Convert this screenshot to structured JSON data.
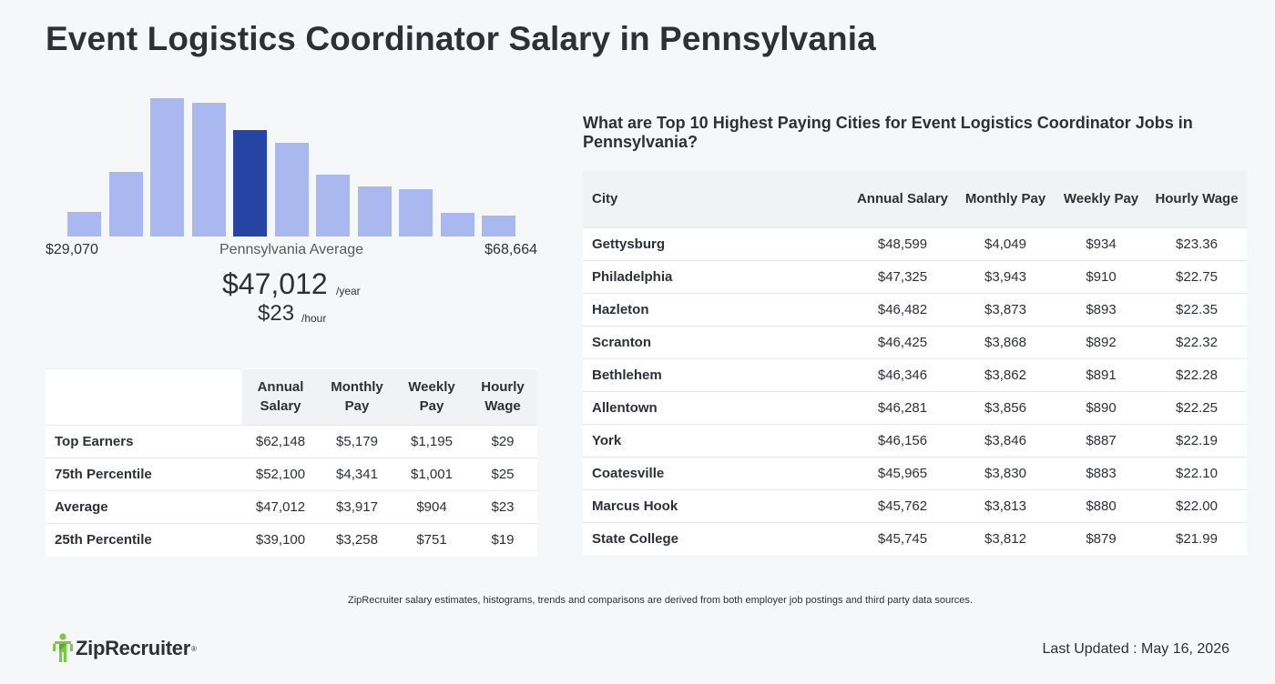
{
  "title": "Event Logistics Coordinator Salary in Pennsylvania",
  "histogram": {
    "bars": [
      0.18,
      0.47,
      1.0,
      0.97,
      0.77,
      0.68,
      0.45,
      0.36,
      0.34,
      0.17,
      0.15
    ],
    "highlight_index": 4,
    "bar_color": "#aab8f0",
    "highlight_color": "#2645a3",
    "range_min": "$29,070",
    "range_max": "$68,664",
    "average_label": "Pennsylvania Average",
    "average_annual": "$47,012",
    "annual_unit": "/year",
    "average_hourly": "$23",
    "hourly_unit": "/hour"
  },
  "percentile_table": {
    "headers": [
      "Annual Salary",
      "Monthly Pay",
      "Weekly Pay",
      "Hourly Wage"
    ],
    "rows": [
      {
        "label": "Top Earners",
        "annual": "$62,148",
        "monthly": "$5,179",
        "weekly": "$1,195",
        "hourly": "$29"
      },
      {
        "label": "75th Percentile",
        "annual": "$52,100",
        "monthly": "$4,341",
        "weekly": "$1,001",
        "hourly": "$25"
      },
      {
        "label": "Average",
        "annual": "$47,012",
        "monthly": "$3,917",
        "weekly": "$904",
        "hourly": "$23"
      },
      {
        "label": "25th Percentile",
        "annual": "$39,100",
        "monthly": "$3,258",
        "weekly": "$751",
        "hourly": "$19"
      }
    ]
  },
  "cities": {
    "heading": "What are Top 10 Highest Paying Cities for Event Logistics Coordinator Jobs in Pennsylvania?",
    "headers": [
      "City",
      "Annual Salary",
      "Monthly Pay",
      "Weekly Pay",
      "Hourly Wage"
    ],
    "rows": [
      {
        "city": "Gettysburg",
        "annual": "$48,599",
        "monthly": "$4,049",
        "weekly": "$934",
        "hourly": "$23.36"
      },
      {
        "city": "Philadelphia",
        "annual": "$47,325",
        "monthly": "$3,943",
        "weekly": "$910",
        "hourly": "$22.75"
      },
      {
        "city": "Hazleton",
        "annual": "$46,482",
        "monthly": "$3,873",
        "weekly": "$893",
        "hourly": "$22.35"
      },
      {
        "city": "Scranton",
        "annual": "$46,425",
        "monthly": "$3,868",
        "weekly": "$892",
        "hourly": "$22.32"
      },
      {
        "city": "Bethlehem",
        "annual": "$46,346",
        "monthly": "$3,862",
        "weekly": "$891",
        "hourly": "$22.28"
      },
      {
        "city": "Allentown",
        "annual": "$46,281",
        "monthly": "$3,856",
        "weekly": "$890",
        "hourly": "$22.25"
      },
      {
        "city": "York",
        "annual": "$46,156",
        "monthly": "$3,846",
        "weekly": "$887",
        "hourly": "$22.19"
      },
      {
        "city": "Coatesville",
        "annual": "$45,965",
        "monthly": "$3,830",
        "weekly": "$883",
        "hourly": "$22.10"
      },
      {
        "city": "Marcus Hook",
        "annual": "$45,762",
        "monthly": "$3,813",
        "weekly": "$880",
        "hourly": "$22.00"
      },
      {
        "city": "State College",
        "annual": "$45,745",
        "monthly": "$3,812",
        "weekly": "$879",
        "hourly": "$21.99"
      }
    ]
  },
  "footer": {
    "disclaimer": "ZipRecruiter salary estimates, histograms, trends and comparisons are derived from both employer job postings and third party data sources.",
    "logo_text": "ZipRecruiter",
    "logo_icon": "ziprecruiter-person-icon",
    "logo_color": "#7ac943",
    "last_updated": "Last Updated : May 16, 2026"
  }
}
